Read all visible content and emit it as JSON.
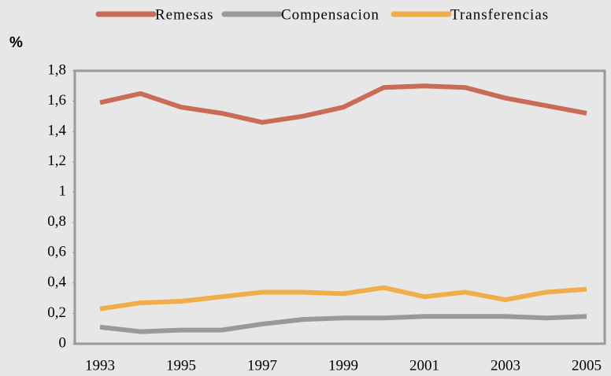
{
  "chart_data": {
    "type": "line",
    "y_label": "%",
    "categories": [
      "1993",
      null,
      "1995",
      null,
      "1997",
      null,
      "1999",
      null,
      "2001",
      null,
      "2003",
      null,
      "2005"
    ],
    "series": [
      {
        "name": "Remesas",
        "color": "#c96c57",
        "values": [
          1.59,
          1.65,
          1.56,
          1.52,
          1.46,
          1.5,
          1.56,
          1.69,
          1.7,
          1.69,
          1.62,
          1.57,
          1.52
        ]
      },
      {
        "name": "Compensacion",
        "color": "#999999",
        "values": [
          0.11,
          0.08,
          0.09,
          0.09,
          0.13,
          0.16,
          0.17,
          0.17,
          0.18,
          0.18,
          0.18,
          0.17,
          0.18
        ]
      },
      {
        "name": "Transferencias",
        "color": "#f0ae4a",
        "values": [
          0.23,
          0.27,
          0.28,
          0.31,
          0.34,
          0.34,
          0.33,
          0.37,
          0.31,
          0.34,
          0.29,
          0.34,
          0.36
        ]
      }
    ],
    "ylim": [
      0,
      1.8
    ],
    "yticks": [
      0,
      {
        "value": 0.2,
        "label": "0,2"
      },
      {
        "value": 0.4,
        "label": "0,4"
      },
      {
        "value": 0.6,
        "label": "0,6"
      },
      {
        "value": 0.8,
        "label": "0,8"
      },
      1,
      {
        "value": 1.2,
        "label": "1,2"
      },
      {
        "value": 1.4,
        "label": "1,4"
      },
      {
        "value": 1.6,
        "label": "1,6"
      },
      {
        "value": 1.8,
        "label": "1,8"
      }
    ],
    "grid": false,
    "legend": "top"
  }
}
